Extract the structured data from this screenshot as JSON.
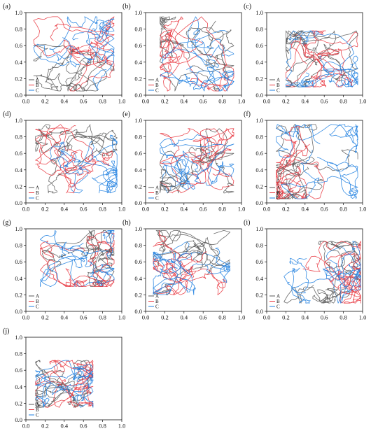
{
  "figure": {
    "colors": {
      "A": "#5a5a5a",
      "B": "#e8363f",
      "C": "#1f7fe0"
    },
    "legend": [
      "A",
      "B",
      "C"
    ],
    "legend_placement": "bottom-left"
  },
  "chart_data": [
    {
      "type": "line",
      "panel": "(a)",
      "xlim": [
        0,
        1.0
      ],
      "ylim": [
        0,
        1.0
      ],
      "x_ticks": [
        "0.0",
        "0.2",
        "0.4",
        "0.6",
        "0.8",
        "1.0"
      ],
      "y_ticks": [
        "0.0",
        "0.2",
        "0.4",
        "0.6",
        "0.8",
        "1.0"
      ],
      "trajectory_region": {
        "x": [
          0.08,
          0.92
        ],
        "y": [
          0.05,
          0.95
        ]
      },
      "seed": 11,
      "series": [
        {
          "name": "A"
        },
        {
          "name": "B"
        },
        {
          "name": "C"
        }
      ]
    },
    {
      "type": "line",
      "panel": "(b)",
      "xlim": [
        0,
        1.0
      ],
      "ylim": [
        0,
        1.0
      ],
      "x_ticks": [
        "0.0",
        "0.2",
        "0.4",
        "0.6",
        "0.8",
        "1.0"
      ],
      "y_ticks": [
        "0.0",
        "0.2",
        "0.4",
        "0.6",
        "0.8",
        "1.0"
      ],
      "trajectory_region": {
        "x": [
          0.15,
          0.92
        ],
        "y": [
          0.05,
          0.95
        ]
      },
      "seed": 23,
      "series": [
        {
          "name": "A"
        },
        {
          "name": "B"
        },
        {
          "name": "C"
        }
      ]
    },
    {
      "type": "line",
      "panel": "(c)",
      "xlim": [
        0,
        1.0
      ],
      "ylim": [
        0,
        1.0
      ],
      "x_ticks": [
        "0.0",
        "0.2",
        "0.4",
        "0.6",
        "0.8",
        "1.0"
      ],
      "y_ticks": [
        "0.0",
        "0.2",
        "0.4",
        "0.6",
        "0.8",
        "1.0"
      ],
      "trajectory_region": {
        "x": [
          0.2,
          0.95
        ],
        "y": [
          0.1,
          0.78
        ]
      },
      "seed": 37,
      "series": [
        {
          "name": "A"
        },
        {
          "name": "B"
        },
        {
          "name": "C"
        }
      ]
    },
    {
      "type": "line",
      "panel": "(d)",
      "xlim": [
        0,
        1.0
      ],
      "ylim": [
        0,
        1.0
      ],
      "x_ticks": [
        "0.0",
        "0.2",
        "0.4",
        "0.6",
        "0.8",
        "1.0"
      ],
      "y_ticks": [
        "0.0",
        "0.2",
        "0.4",
        "0.6",
        "0.8",
        "1.0"
      ],
      "trajectory_region": {
        "x": [
          0.1,
          0.95
        ],
        "y": [
          0.12,
          0.95
        ]
      },
      "seed": 41,
      "series": [
        {
          "name": "A"
        },
        {
          "name": "B"
        },
        {
          "name": "C"
        }
      ]
    },
    {
      "type": "line",
      "panel": "(e)",
      "xlim": [
        0,
        1.0
      ],
      "ylim": [
        0,
        1.0
      ],
      "x_ticks": [
        "0.0",
        "0.2",
        "0.4",
        "0.6",
        "0.8",
        "1.0"
      ],
      "y_ticks": [
        "0.0",
        "0.2",
        "0.4",
        "0.6",
        "0.8",
        "1.0"
      ],
      "trajectory_region": {
        "x": [
          0.15,
          0.92
        ],
        "y": [
          0.12,
          0.9
        ]
      },
      "seed": 53,
      "series": [
        {
          "name": "A"
        },
        {
          "name": "B"
        },
        {
          "name": "C"
        }
      ]
    },
    {
      "type": "line",
      "panel": "(f)",
      "xlim": [
        0,
        1.0
      ],
      "ylim": [
        0,
        1.0
      ],
      "x_ticks": [
        "0.0",
        "0.2",
        "0.4",
        "0.6",
        "0.8",
        "1.0"
      ],
      "y_ticks": [
        "0.0",
        "0.2",
        "0.4",
        "0.6",
        "0.8",
        "1.0"
      ],
      "trajectory_region": {
        "x": [
          0.1,
          0.95
        ],
        "y": [
          0.05,
          0.95
        ]
      },
      "seed": 67,
      "series": [
        {
          "name": "A"
        },
        {
          "name": "B"
        },
        {
          "name": "C"
        }
      ]
    },
    {
      "type": "line",
      "panel": "(g)",
      "xlim": [
        0,
        1.0
      ],
      "ylim": [
        0,
        1.0
      ],
      "x_ticks": [
        "0.0",
        "0.2",
        "0.4",
        "0.6",
        "0.8",
        "1.0"
      ],
      "y_ticks": [
        "0.0",
        "0.2",
        "0.4",
        "0.6",
        "0.8",
        "1.0"
      ],
      "trajectory_region": {
        "x": [
          0.15,
          0.92
        ],
        "y": [
          0.3,
          0.98
        ]
      },
      "seed": 71,
      "series": [
        {
          "name": "A"
        },
        {
          "name": "B"
        },
        {
          "name": "C"
        }
      ]
    },
    {
      "type": "line",
      "panel": "(h)",
      "xlim": [
        0,
        1.0
      ],
      "ylim": [
        0,
        1.0
      ],
      "x_ticks": [
        "0.0",
        "0.2",
        "0.4",
        "0.6",
        "0.8",
        "1.0"
      ],
      "y_ticks": [
        "0.0",
        "0.2",
        "0.4",
        "0.6",
        "0.8",
        "1.0"
      ],
      "trajectory_region": {
        "x": [
          0.08,
          0.88
        ],
        "y": [
          0.2,
          0.98
        ]
      },
      "seed": 83,
      "series": [
        {
          "name": "A"
        },
        {
          "name": "B"
        },
        {
          "name": "C"
        }
      ]
    },
    {
      "type": "line",
      "panel": "(i)",
      "xlim": [
        0,
        1.0
      ],
      "ylim": [
        0,
        1.0
      ],
      "x_ticks": [
        "0.0",
        "0.2",
        "0.4",
        "0.6",
        "0.8",
        "1.0"
      ],
      "y_ticks": [
        "0.0",
        "0.2",
        "0.4",
        "0.6",
        "0.8",
        "1.0"
      ],
      "trajectory_region": {
        "x": [
          0.18,
          0.98
        ],
        "y": [
          0.1,
          0.85
        ]
      },
      "seed": 97,
      "series": [
        {
          "name": "A"
        },
        {
          "name": "B"
        },
        {
          "name": "C"
        }
      ]
    },
    {
      "type": "line",
      "panel": "(j)",
      "xlim": [
        0,
        1.0
      ],
      "ylim": [
        0,
        1.0
      ],
      "x_ticks": [
        "0.0",
        "0.2",
        "0.4",
        "0.6",
        "0.8",
        "1.0"
      ],
      "y_ticks": [
        "0.0",
        "0.2",
        "0.4",
        "0.6",
        "0.8",
        "1.0"
      ],
      "trajectory_region": {
        "x": [
          0.1,
          0.7
        ],
        "y": [
          0.15,
          0.72
        ]
      },
      "seed": 109,
      "series": [
        {
          "name": "A"
        },
        {
          "name": "B"
        },
        {
          "name": "C"
        }
      ]
    }
  ]
}
